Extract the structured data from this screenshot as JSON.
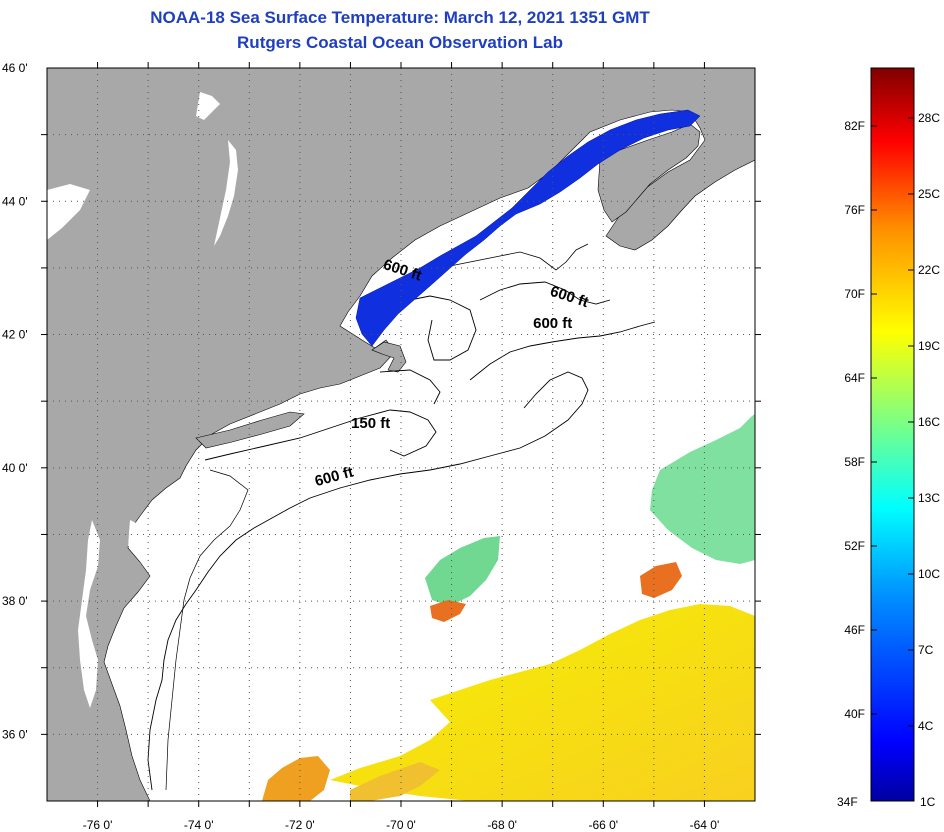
{
  "title": {
    "line1": "NOAA-18 Sea Surface Temperature:  March 12, 2021 1351 GMT",
    "line2": "Rutgers Coastal Ocean Observation Lab"
  },
  "map": {
    "lon_range": [
      -77,
      -63
    ],
    "lat_range": [
      35,
      46
    ],
    "lat_labels": [
      {
        "lat": 46,
        "label": "46 0'"
      },
      {
        "lat": 44,
        "label": "44 0'"
      },
      {
        "lat": 42,
        "label": "42 0'"
      },
      {
        "lat": 40,
        "label": "40 0'"
      },
      {
        "lat": 38,
        "label": "38 0'"
      },
      {
        "lat": 36,
        "label": "36 0'"
      }
    ],
    "lon_labels": [
      {
        "lon": -76,
        "label": "-76 0'"
      },
      {
        "lon": -74,
        "label": "-74 0'"
      },
      {
        "lon": -72,
        "label": "-72 0'"
      },
      {
        "lon": -70,
        "label": "-70 0'"
      },
      {
        "lon": -68,
        "label": "-68 0'"
      },
      {
        "lon": -66,
        "label": "-66 0'"
      },
      {
        "lon": -64,
        "label": "-64 0'"
      }
    ],
    "contour_labels": [
      {
        "label": "600 ft",
        "lon": -70.0,
        "lat": 42.9,
        "rotate": 18
      },
      {
        "label": "600 ft",
        "lon": -66.7,
        "lat": 42.5,
        "rotate": 18
      },
      {
        "label": "600 ft",
        "lon": -67.0,
        "lat": 42.1,
        "rotate": 0
      },
      {
        "label": "150 ft",
        "lon": -70.6,
        "lat": 40.6,
        "rotate": 0
      },
      {
        "label": "600 ft",
        "lon": -71.3,
        "lat": 39.8,
        "rotate": -15
      }
    ]
  },
  "colorbar": {
    "min_label_f": "34F",
    "min_label_c": "1C",
    "f_labels": [
      "82F",
      "76F",
      "70F",
      "64F",
      "58F",
      "52F",
      "46F",
      "40F"
    ],
    "c_labels": [
      "28C",
      "25C",
      "22C",
      "19C",
      "16C",
      "13C",
      "10C",
      "7C",
      "4C"
    ],
    "colors": [
      "#0000a0",
      "#0000ff",
      "#0080ff",
      "#00ffff",
      "#80ff80",
      "#ffff00",
      "#ff8000",
      "#ff0000",
      "#800000"
    ]
  }
}
